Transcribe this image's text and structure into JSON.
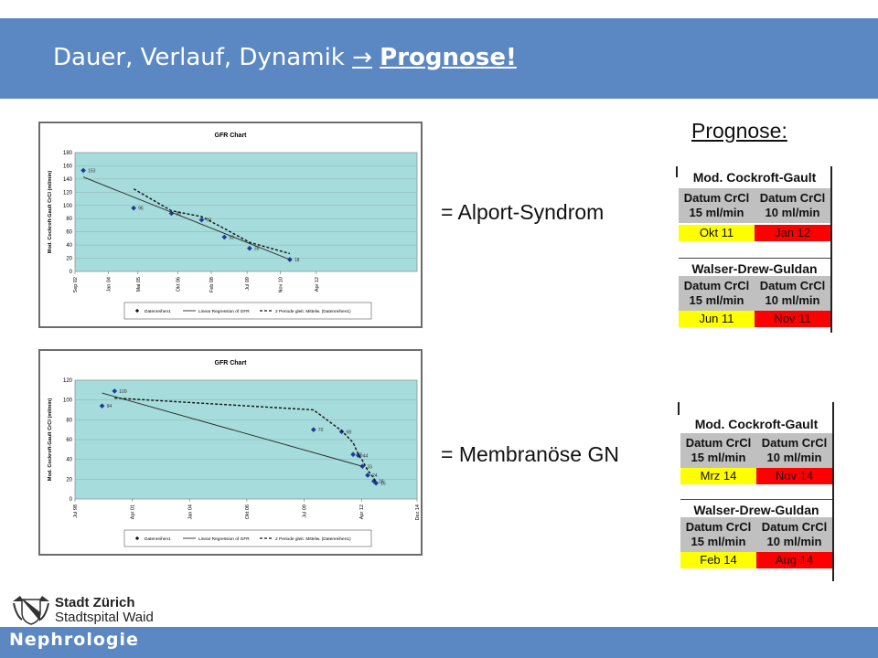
{
  "slide": {
    "title_prefix": "Dauer, Verlauf, Dynamik",
    "title_arrow": "→",
    "title_emph": "Prognose!"
  },
  "labels": {
    "alport": "= Alport-Syndrom",
    "membranous": "= Membranöse GN",
    "prognose": "Prognose:"
  },
  "tables": [
    {
      "sections": [
        {
          "name": "Mod. Cockroft-Gault",
          "col1": "Datum CrCl 15 ml/min",
          "col2": "Datum CrCl 10 ml/min",
          "v1": "Okt 11",
          "v2": "Jan 12"
        },
        {
          "name": "Walser-Drew-Guldan",
          "col1": "Datum CrCl 15 ml/min",
          "col2": "Datum CrCl 10 ml/min",
          "v1": "Jun 11",
          "v2": "Nov 11"
        }
      ]
    },
    {
      "sections": [
        {
          "name": "Mod. Cockroft-Gault",
          "col1": "Datum CrCl 15 ml/min",
          "col2": "Datum CrCl 10 ml/min",
          "v1": "Mrz 14",
          "v2": "Nov 14"
        },
        {
          "name": "Walser-Drew-Guldan",
          "col1": "Datum CrCl 15 ml/min",
          "col2": "Datum CrCl 10 ml/min",
          "v1": "Feb 14",
          "v2": "Aug 14"
        }
      ]
    }
  ],
  "colors": {
    "header": "#5b87c3",
    "plot_bg": "#a6dcdc",
    "point": "#1f3b99",
    "yellow": "#ffff00",
    "red": "#ff0000"
  },
  "footer": {
    "department": "Nephrologie",
    "org_line1": "Stadt Zürich",
    "org_line2": "Stadtspital Waid"
  },
  "chart_data": [
    {
      "type": "scatter",
      "title": "GFR Chart",
      "ylabel": "Mod. Cockroft-Gault CrCl (ml/min)",
      "ylim": [
        0,
        180
      ],
      "yticks": [
        0,
        20,
        40,
        60,
        80,
        100,
        120,
        140,
        160,
        180
      ],
      "xlim": [
        1998.67,
        2012.25
      ],
      "xticks": [
        {
          "v": 1998.67,
          "label": "Sep 02"
        },
        {
          "v": 2000.0,
          "label": "Jan 04"
        },
        {
          "v": 2001.17,
          "label": "Mai 05"
        },
        {
          "v": 2002.75,
          "label": "Okt 06"
        },
        {
          "v": 2004.08,
          "label": "Feb 08"
        },
        {
          "v": 2005.5,
          "label": "Jul 09"
        },
        {
          "v": 2006.83,
          "label": "Nov 10"
        },
        {
          "v": 2008.25,
          "label": "Apr 12"
        }
      ],
      "grid": true,
      "legend_position": "bottom",
      "series": [
        {
          "name": "Datenreihen1",
          "kind": "points",
          "x": [
            1999.0,
            2001.0,
            2002.5,
            2003.7,
            2004.6,
            2005.6,
            2007.2
          ],
          "y": [
            153,
            96,
            88,
            78,
            52,
            35,
            18
          ],
          "labels": [
            "153",
            "96",
            "88",
            "78",
            "52",
            "35",
            "18"
          ]
        },
        {
          "name": "Linear Regression of GFR",
          "kind": "line",
          "x": [
            1999.0,
            2007.2
          ],
          "y": [
            143,
            18
          ]
        },
        {
          "name": "2 Periode gleit. Mittelw. (Datenreihen1)",
          "kind": "dashed",
          "x": [
            2001.0,
            2002.5,
            2003.7,
            2004.6,
            2005.6,
            2007.2
          ],
          "y": [
            125,
            92,
            83,
            65,
            44,
            27
          ]
        }
      ]
    },
    {
      "type": "scatter",
      "title": "GFR Chart",
      "ylabel": "Mod. Cockroft-Gault CrCl (ml/min)",
      "ylim": [
        0,
        120
      ],
      "yticks": [
        0,
        20,
        40,
        60,
        80,
        100,
        120
      ],
      "xlim": [
        1998.5,
        2014.92
      ],
      "xticks": [
        {
          "v": 1998.5,
          "label": "Jul 98"
        },
        {
          "v": 2001.25,
          "label": "Apr 01"
        },
        {
          "v": 2004.0,
          "label": "Jan 04"
        },
        {
          "v": 2006.75,
          "label": "Okt 06"
        },
        {
          "v": 2009.5,
          "label": "Jul 09"
        },
        {
          "v": 2012.25,
          "label": "Apr 12"
        },
        {
          "v": 2014.92,
          "label": "Dez 14"
        }
      ],
      "grid": true,
      "legend_position": "bottom",
      "series": [
        {
          "name": "Datenreihen1",
          "kind": "points",
          "x": [
            1999.8,
            2000.4,
            2009.95,
            2011.3,
            2011.85,
            2012.1,
            2012.3,
            2012.55,
            2012.85,
            2012.95
          ],
          "y": [
            94,
            109,
            70,
            68,
            45,
            44,
            33,
            24,
            18,
            16
          ],
          "labels": [
            "94",
            "109",
            "70",
            "68",
            "45",
            "44",
            "33",
            "24",
            "18",
            "16"
          ]
        },
        {
          "name": "Linear Regression of GFR",
          "kind": "line",
          "x": [
            1999.8,
            2012.3
          ],
          "y": [
            107,
            33
          ]
        },
        {
          "name": "2 Periode gleit. Mittelw. (Datenreihen1)",
          "kind": "dashed",
          "x": [
            2000.4,
            2009.95,
            2011.3,
            2011.85,
            2012.1,
            2012.3,
            2012.55,
            2012.85,
            2012.95
          ],
          "y": [
            102,
            90,
            69,
            57,
            45,
            39,
            29,
            21,
            17
          ]
        }
      ]
    }
  ]
}
